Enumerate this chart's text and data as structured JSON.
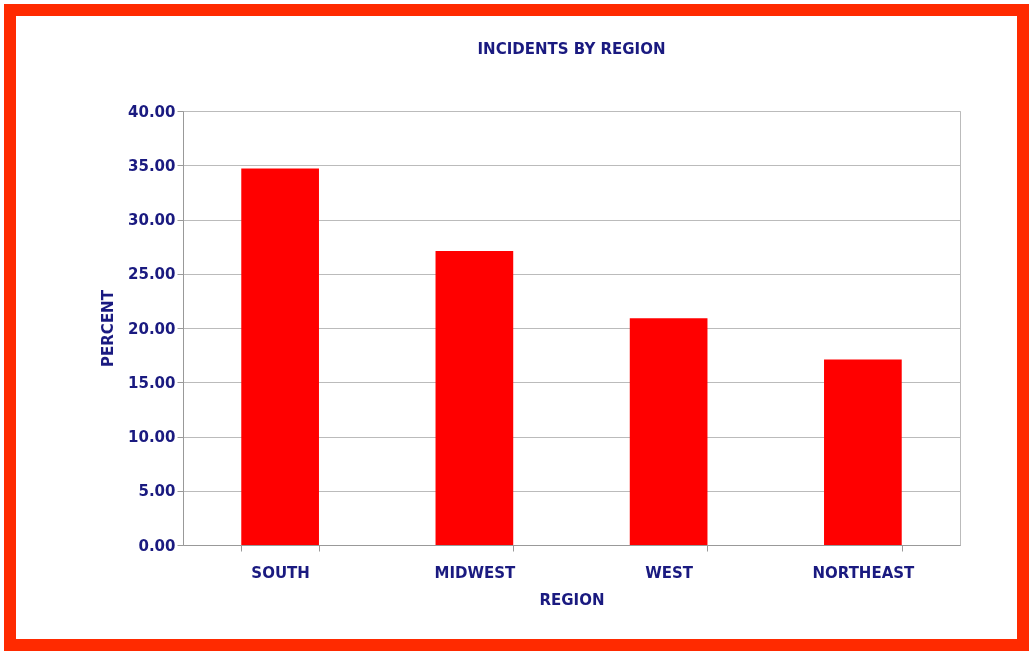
{
  "chart_data": {
    "type": "bar",
    "title": "INCIDENTS BY REGION",
    "xlabel": "REGION",
    "ylabel": "PERCENT",
    "categories": [
      "SOUTH",
      "MIDWEST",
      "WEST",
      "NORTHEAST"
    ],
    "values": [
      34.7,
      27.1,
      20.9,
      17.1
    ],
    "color": "#ff0000",
    "ylim": [
      0,
      40
    ],
    "yticks": [
      {
        "value": 0,
        "label": "0.00"
      },
      {
        "value": 5,
        "label": "5.00"
      },
      {
        "value": 10,
        "label": "10.00"
      },
      {
        "value": 15,
        "label": "15.00"
      },
      {
        "value": 20,
        "label": "20.00"
      },
      {
        "value": 25,
        "label": "25.00"
      },
      {
        "value": 30,
        "label": "30.00"
      },
      {
        "value": 35,
        "label": "35.00"
      },
      {
        "value": 40,
        "label": "40.00"
      }
    ],
    "grid": "y"
  }
}
